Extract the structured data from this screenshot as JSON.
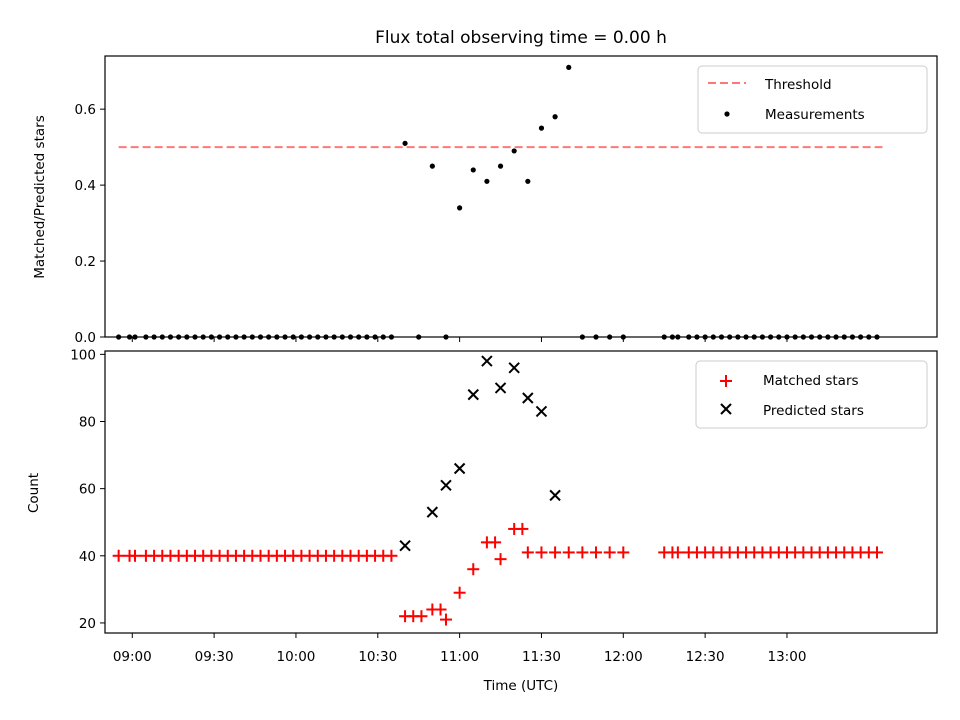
{
  "chart_data": [
    {
      "type": "scatter",
      "title": "Flux total observing time = 0.00 h",
      "xlabel": "",
      "ylabel": "Matched/Predicted stars",
      "xlim": [
        "08:50",
        "13:55"
      ],
      "ylim": [
        0,
        0.74
      ],
      "y_ticks": [
        "0.0",
        "0.2",
        "0.4",
        "0.6"
      ],
      "grid": false,
      "legend_position": "top-right",
      "threshold": {
        "name": "Threshold",
        "value": 0.5,
        "x_start": "08:55",
        "x_end": "13:35",
        "color": "#ff7777",
        "style": "dashed"
      },
      "series": [
        {
          "name": "Measurements",
          "color": "#000000",
          "marker": "dot",
          "x": [
            "08:55",
            "08:59",
            "09:01",
            "09:05",
            "09:08",
            "09:11",
            "09:14",
            "09:17",
            "09:20",
            "09:23",
            "09:26",
            "09:29",
            "09:32",
            "09:35",
            "09:38",
            "09:41",
            "09:44",
            "09:47",
            "09:50",
            "09:53",
            "09:56",
            "09:59",
            "10:02",
            "10:05",
            "10:08",
            "10:11",
            "10:14",
            "10:17",
            "10:20",
            "10:23",
            "10:26",
            "10:29",
            "10:32",
            "10:35",
            "10:40",
            "10:45",
            "10:50",
            "10:55",
            "11:00",
            "11:05",
            "11:10",
            "11:15",
            "11:20",
            "11:25",
            "11:30",
            "11:35",
            "11:40",
            "11:45",
            "11:50",
            "11:55",
            "12:00",
            "12:15",
            "12:18",
            "12:20",
            "12:24",
            "12:27",
            "12:30",
            "12:33",
            "12:36",
            "12:39",
            "12:42",
            "12:45",
            "12:48",
            "12:51",
            "12:54",
            "12:57",
            "13:00",
            "13:03",
            "13:06",
            "13:09",
            "13:12",
            "13:15",
            "13:18",
            "13:21",
            "13:24",
            "13:27",
            "13:30",
            "13:33"
          ],
          "y": [
            0,
            0,
            0,
            0,
            0,
            0,
            0,
            0,
            0,
            0,
            0,
            0,
            0,
            0,
            0,
            0,
            0,
            0,
            0,
            0,
            0,
            0,
            0,
            0,
            0,
            0,
            0,
            0,
            0,
            0,
            0,
            0,
            0,
            0,
            0.51,
            0,
            0.45,
            0,
            0.34,
            0.44,
            0.41,
            0.45,
            0.49,
            0.41,
            0.55,
            0.58,
            0.71,
            0,
            0,
            0,
            0,
            0,
            0,
            0,
            0,
            0,
            0,
            0,
            0,
            0,
            0,
            0,
            0,
            0,
            0,
            0,
            0,
            0,
            0,
            0,
            0,
            0,
            0,
            0,
            0,
            0,
            0,
            0
          ]
        }
      ]
    },
    {
      "type": "scatter",
      "title": "",
      "xlabel": "Time (UTC)",
      "ylabel": "Count",
      "xlim": [
        "08:50",
        "13:55"
      ],
      "ylim": [
        17,
        101
      ],
      "x_ticks": [
        "09:00",
        "09:30",
        "10:00",
        "10:30",
        "11:00",
        "11:30",
        "12:00",
        "12:30",
        "13:00"
      ],
      "y_ticks": [
        "20",
        "40",
        "60",
        "80",
        "100"
      ],
      "grid": false,
      "legend_position": "top-right",
      "series": [
        {
          "name": "Matched stars",
          "color": "#ff0000",
          "marker": "plus",
          "x": [
            "08:55",
            "08:59",
            "09:01",
            "09:05",
            "09:08",
            "09:11",
            "09:14",
            "09:17",
            "09:20",
            "09:23",
            "09:26",
            "09:29",
            "09:32",
            "09:35",
            "09:38",
            "09:41",
            "09:44",
            "09:47",
            "09:50",
            "09:53",
            "09:56",
            "09:59",
            "10:02",
            "10:05",
            "10:08",
            "10:11",
            "10:14",
            "10:17",
            "10:20",
            "10:23",
            "10:26",
            "10:29",
            "10:32",
            "10:35",
            "10:40",
            "10:43",
            "10:46",
            "10:50",
            "10:53",
            "10:55",
            "11:00",
            "11:05",
            "11:10",
            "11:13",
            "11:15",
            "11:20",
            "11:23",
            "11:25",
            "11:30",
            "11:35",
            "11:40",
            "11:45",
            "11:50",
            "11:55",
            "12:00",
            "12:15",
            "12:18",
            "12:20",
            "12:24",
            "12:27",
            "12:30",
            "12:33",
            "12:36",
            "12:39",
            "12:42",
            "12:45",
            "12:48",
            "12:51",
            "12:54",
            "12:57",
            "13:00",
            "13:03",
            "13:06",
            "13:09",
            "13:12",
            "13:15",
            "13:18",
            "13:21",
            "13:24",
            "13:27",
            "13:30",
            "13:33"
          ],
          "y": [
            40,
            40,
            40,
            40,
            40,
            40,
            40,
            40,
            40,
            40,
            40,
            40,
            40,
            40,
            40,
            40,
            40,
            40,
            40,
            40,
            40,
            40,
            40,
            40,
            40,
            40,
            40,
            40,
            40,
            40,
            40,
            40,
            40,
            40,
            22,
            22,
            22,
            24,
            24,
            21,
            29,
            36,
            44,
            44,
            39,
            48,
            48,
            41,
            41,
            41,
            41,
            41,
            41,
            41,
            41,
            41,
            41,
            41,
            41,
            41,
            41,
            41,
            41,
            41,
            41,
            41,
            41,
            41,
            41,
            41,
            41,
            41,
            41,
            41,
            41,
            41,
            41,
            41,
            41,
            41,
            41,
            41
          ]
        },
        {
          "name": "Predicted stars",
          "color": "#000000",
          "marker": "x",
          "x": [
            "10:40",
            "10:50",
            "10:55",
            "11:00",
            "11:05",
            "11:10",
            "11:15",
            "11:20",
            "11:25",
            "11:30",
            "11:35"
          ],
          "y": [
            43,
            53,
            61,
            66,
            88,
            98,
            90,
            96,
            87,
            83,
            58
          ]
        }
      ]
    }
  ]
}
